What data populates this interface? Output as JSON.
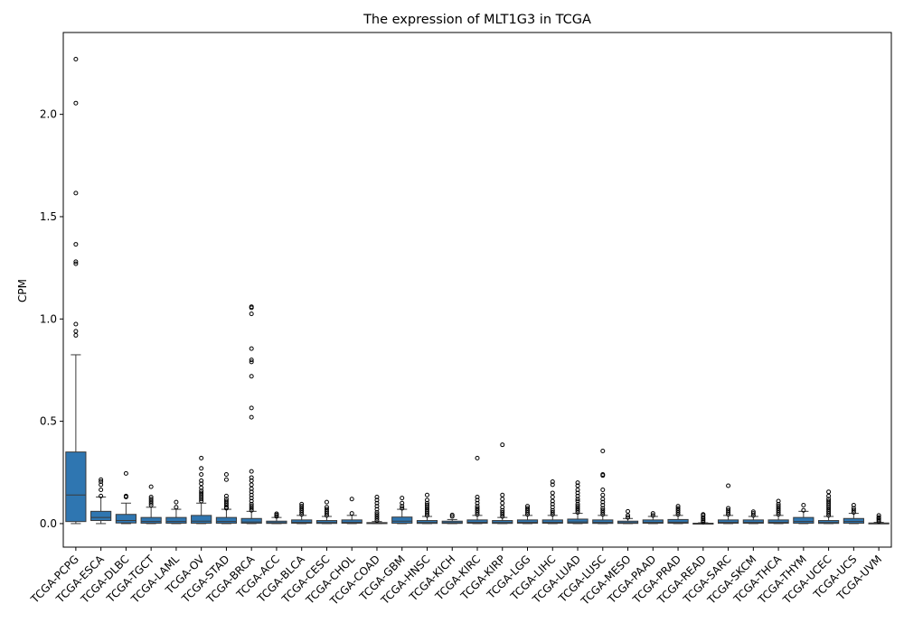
{
  "chart_data": {
    "type": "box",
    "title": "The expression of MLT1G3 in TCGA",
    "xlabel": "",
    "ylabel": "CPM",
    "ylim": [
      -0.115,
      2.4
    ],
    "yticks": [
      0.0,
      0.5,
      1.0,
      1.5,
      2.0
    ],
    "ytick_labels": [
      "0.0",
      "0.5",
      "1.0",
      "1.5",
      "2.0"
    ],
    "grid": false,
    "colors": {
      "box_fill": "#2f76b1",
      "line": "#3a3a3a",
      "flier": "#000000"
    },
    "categories": [
      "TCGA-PCPG",
      "TCGA-ESCA",
      "TCGA-DLBC",
      "TCGA-TGCT",
      "TCGA-LAML",
      "TCGA-OV",
      "TCGA-STAD",
      "TCGA-BRCA",
      "TCGA-ACC",
      "TCGA-BLCA",
      "TCGA-CESC",
      "TCGA-CHOL",
      "TCGA-COAD",
      "TCGA-GBM",
      "TCGA-HNSC",
      "TCGA-KICH",
      "TCGA-KIRC",
      "TCGA-KIRP",
      "TCGA-LGG",
      "TCGA-LIHC",
      "TCGA-LUAD",
      "TCGA-LUSC",
      "TCGA-MESO",
      "TCGA-PAAD",
      "TCGA-PRAD",
      "TCGA-READ",
      "TCGA-SARC",
      "TCGA-SKCM",
      "TCGA-THCA",
      "TCGA-THYM",
      "TCGA-UCEC",
      "TCGA-UCS",
      "TCGA-UVM"
    ],
    "boxes": [
      {
        "q1": 0.01,
        "median": 0.14,
        "q3": 0.35,
        "whislo": 0.0,
        "whishi": 0.825,
        "fliers": [
          0.92,
          0.94,
          0.975,
          1.27,
          1.28,
          1.365,
          1.615,
          2.055,
          2.27
        ]
      },
      {
        "q1": 0.015,
        "median": 0.03,
        "q3": 0.06,
        "whislo": 0.0,
        "whishi": 0.13,
        "fliers": [
          0.135,
          0.165,
          0.19,
          0.205,
          0.215
        ]
      },
      {
        "q1": 0.003,
        "median": 0.015,
        "q3": 0.045,
        "whislo": 0.0,
        "whishi": 0.1,
        "fliers": [
          0.13,
          0.135,
          0.245
        ]
      },
      {
        "q1": 0.002,
        "median": 0.01,
        "q3": 0.03,
        "whislo": 0.0,
        "whishi": 0.08,
        "fliers": [
          0.09,
          0.1,
          0.11,
          0.12,
          0.13,
          0.18
        ]
      },
      {
        "q1": 0.002,
        "median": 0.01,
        "q3": 0.03,
        "whislo": 0.0,
        "whishi": 0.07,
        "fliers": [
          0.08,
          0.105
        ]
      },
      {
        "q1": 0.002,
        "median": 0.012,
        "q3": 0.04,
        "whislo": 0.0,
        "whishi": 0.1,
        "fliers": [
          0.11,
          0.12,
          0.13,
          0.14,
          0.15,
          0.16,
          0.175,
          0.195,
          0.21,
          0.24,
          0.27,
          0.32
        ]
      },
      {
        "q1": 0.002,
        "median": 0.01,
        "q3": 0.03,
        "whislo": 0.0,
        "whishi": 0.07,
        "fliers": [
          0.075,
          0.08,
          0.09,
          0.1,
          0.11,
          0.12,
          0.135,
          0.215,
          0.24
        ]
      },
      {
        "q1": 0.002,
        "median": 0.008,
        "q3": 0.025,
        "whislo": 0.0,
        "whishi": 0.06,
        "fliers": [
          0.065,
          0.075,
          0.085,
          0.095,
          0.11,
          0.125,
          0.14,
          0.155,
          0.17,
          0.19,
          0.21,
          0.225,
          0.255,
          0.52,
          0.565,
          0.72,
          0.79,
          0.8,
          0.855,
          1.025,
          1.055,
          1.06
        ]
      },
      {
        "q1": 0.001,
        "median": 0.004,
        "q3": 0.012,
        "whislo": 0.0,
        "whishi": 0.03,
        "fliers": [
          0.035,
          0.042,
          0.048
        ]
      },
      {
        "q1": 0.002,
        "median": 0.006,
        "q3": 0.018,
        "whislo": 0.0,
        "whishi": 0.04,
        "fliers": [
          0.045,
          0.055,
          0.065,
          0.075,
          0.085,
          0.095
        ]
      },
      {
        "q1": 0.001,
        "median": 0.005,
        "q3": 0.015,
        "whislo": 0.0,
        "whishi": 0.035,
        "fliers": [
          0.04,
          0.05,
          0.06,
          0.07,
          0.08,
          0.105
        ]
      },
      {
        "q1": 0.002,
        "median": 0.006,
        "q3": 0.018,
        "whislo": 0.0,
        "whishi": 0.04,
        "fliers": [
          0.05,
          0.12
        ]
      },
      {
        "q1": 0.0,
        "median": 0.002,
        "q3": 0.005,
        "whislo": 0.0,
        "whishi": 0.01,
        "fliers": [
          0.015,
          0.025,
          0.035,
          0.045,
          0.055,
          0.07,
          0.085,
          0.1,
          0.115,
          0.13
        ]
      },
      {
        "q1": 0.002,
        "median": 0.012,
        "q3": 0.032,
        "whislo": 0.0,
        "whishi": 0.07,
        "fliers": [
          0.075,
          0.085,
          0.1,
          0.125
        ]
      },
      {
        "q1": 0.001,
        "median": 0.005,
        "q3": 0.015,
        "whislo": 0.0,
        "whishi": 0.035,
        "fliers": [
          0.04,
          0.05,
          0.06,
          0.07,
          0.08,
          0.09,
          0.1,
          0.115,
          0.14
        ]
      },
      {
        "q1": 0.001,
        "median": 0.004,
        "q3": 0.012,
        "whislo": 0.0,
        "whishi": 0.02,
        "fliers": [
          0.035,
          0.042
        ]
      },
      {
        "q1": 0.002,
        "median": 0.006,
        "q3": 0.018,
        "whislo": 0.0,
        "whishi": 0.04,
        "fliers": [
          0.045,
          0.055,
          0.065,
          0.075,
          0.085,
          0.1,
          0.115,
          0.13,
          0.32
        ]
      },
      {
        "q1": 0.001,
        "median": 0.005,
        "q3": 0.015,
        "whislo": 0.0,
        "whishi": 0.03,
        "fliers": [
          0.035,
          0.045,
          0.055,
          0.065,
          0.08,
          0.1,
          0.12,
          0.14,
          0.385
        ]
      },
      {
        "q1": 0.002,
        "median": 0.006,
        "q3": 0.018,
        "whislo": 0.0,
        "whishi": 0.04,
        "fliers": [
          0.045,
          0.055,
          0.065,
          0.075,
          0.085
        ]
      },
      {
        "q1": 0.002,
        "median": 0.006,
        "q3": 0.018,
        "whislo": 0.0,
        "whishi": 0.04,
        "fliers": [
          0.045,
          0.055,
          0.065,
          0.08,
          0.095,
          0.11,
          0.13,
          0.15,
          0.19,
          0.205
        ]
      },
      {
        "q1": 0.002,
        "median": 0.008,
        "q3": 0.022,
        "whislo": 0.0,
        "whishi": 0.05,
        "fliers": [
          0.055,
          0.065,
          0.075,
          0.085,
          0.095,
          0.11,
          0.12,
          0.135,
          0.15,
          0.165,
          0.185,
          0.2
        ]
      },
      {
        "q1": 0.001,
        "median": 0.006,
        "q3": 0.018,
        "whislo": 0.0,
        "whishi": 0.04,
        "fliers": [
          0.045,
          0.055,
          0.065,
          0.075,
          0.09,
          0.105,
          0.12,
          0.14,
          0.165,
          0.235,
          0.24,
          0.355
        ]
      },
      {
        "q1": 0.001,
        "median": 0.004,
        "q3": 0.012,
        "whislo": 0.0,
        "whishi": 0.025,
        "fliers": [
          0.03,
          0.04,
          0.06
        ]
      },
      {
        "q1": 0.002,
        "median": 0.006,
        "q3": 0.018,
        "whislo": 0.0,
        "whishi": 0.035,
        "fliers": [
          0.04,
          0.05
        ]
      },
      {
        "q1": 0.002,
        "median": 0.007,
        "q3": 0.02,
        "whislo": 0.0,
        "whishi": 0.04,
        "fliers": [
          0.045,
          0.055,
          0.065,
          0.075,
          0.085
        ]
      },
      {
        "q1": 0.0,
        "median": 0.0,
        "q3": 0.002,
        "whislo": 0.0,
        "whishi": 0.004,
        "fliers": [
          0.008,
          0.015,
          0.022,
          0.03,
          0.04,
          0.045
        ]
      },
      {
        "q1": 0.002,
        "median": 0.006,
        "q3": 0.018,
        "whislo": 0.0,
        "whishi": 0.04,
        "fliers": [
          0.045,
          0.055,
          0.065,
          0.075,
          0.185
        ]
      },
      {
        "q1": 0.002,
        "median": 0.006,
        "q3": 0.018,
        "whislo": 0.0,
        "whishi": 0.035,
        "fliers": [
          0.04,
          0.05,
          0.058
        ]
      },
      {
        "q1": 0.002,
        "median": 0.006,
        "q3": 0.018,
        "whislo": 0.0,
        "whishi": 0.04,
        "fliers": [
          0.045,
          0.055,
          0.065,
          0.075,
          0.085,
          0.095,
          0.11
        ]
      },
      {
        "q1": 0.002,
        "median": 0.01,
        "q3": 0.03,
        "whislo": 0.0,
        "whishi": 0.06,
        "fliers": [
          0.065,
          0.09
        ]
      },
      {
        "q1": 0.001,
        "median": 0.005,
        "q3": 0.015,
        "whislo": 0.0,
        "whishi": 0.035,
        "fliers": [
          0.04,
          0.05,
          0.06,
          0.07,
          0.08,
          0.09,
          0.1,
          0.11,
          0.12,
          0.135,
          0.155
        ]
      },
      {
        "q1": 0.002,
        "median": 0.01,
        "q3": 0.025,
        "whislo": 0.0,
        "whishi": 0.05,
        "fliers": [
          0.055,
          0.065,
          0.075,
          0.09
        ]
      },
      {
        "q1": 0.0,
        "median": 0.001,
        "q3": 0.003,
        "whislo": 0.0,
        "whishi": 0.006,
        "fliers": [
          0.01,
          0.018,
          0.025,
          0.03,
          0.04
        ]
      }
    ]
  }
}
